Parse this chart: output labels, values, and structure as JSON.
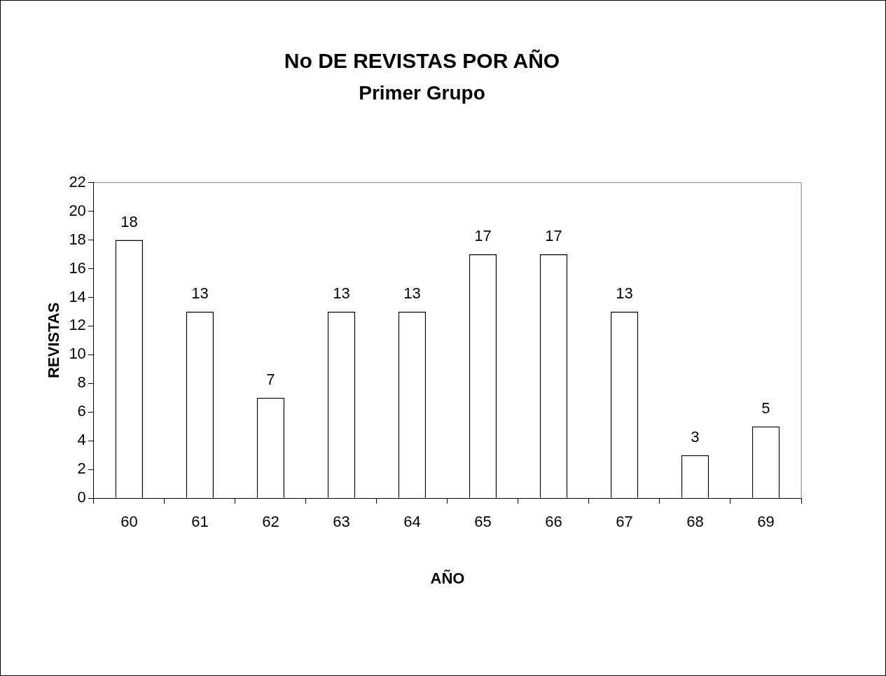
{
  "chart_data": {
    "type": "bar",
    "title": "No DE REVISTAS POR AÑO",
    "subtitle": "Primer Grupo",
    "xlabel": "AÑO",
    "ylabel": "REVISTAS",
    "categories": [
      "60",
      "61",
      "62",
      "63",
      "64",
      "65",
      "66",
      "67",
      "68",
      "69"
    ],
    "values": [
      18,
      13,
      7,
      13,
      13,
      17,
      17,
      13,
      3,
      5
    ],
    "color": "#ffffff",
    "ylim": [
      0,
      22
    ],
    "yticks": [
      0,
      2,
      4,
      6,
      8,
      10,
      12,
      14,
      16,
      18,
      20,
      22
    ],
    "grid": false,
    "legend": false,
    "data_labels": true
  }
}
